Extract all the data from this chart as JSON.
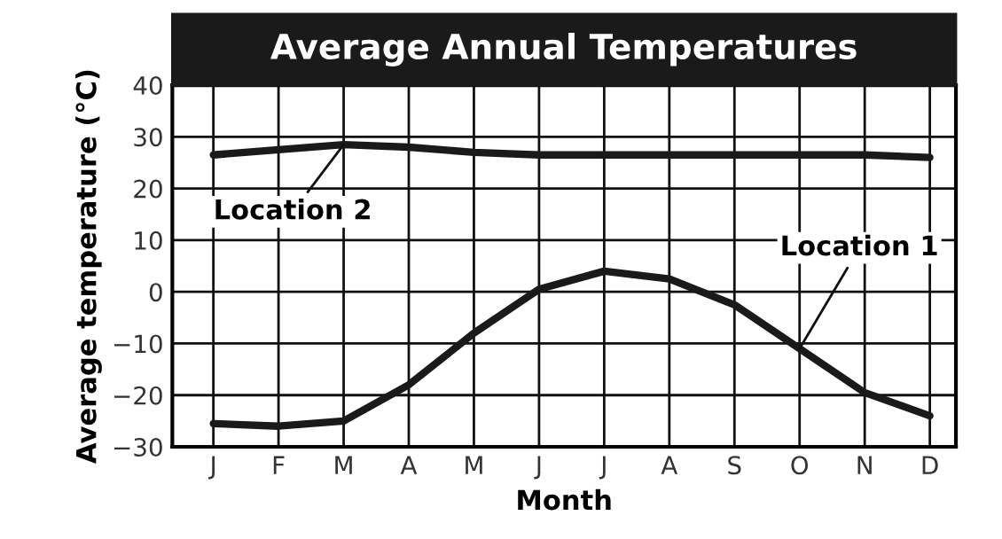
{
  "chart_data": {
    "type": "line",
    "title": "Average Annual Temperatures",
    "xlabel": "Month",
    "ylabel": "Average temperature (°C)",
    "categories": [
      "J",
      "F",
      "M",
      "A",
      "M",
      "J",
      "J",
      "A",
      "S",
      "O",
      "N",
      "D"
    ],
    "series": [
      {
        "color": "#1a1a1a",
        "values": [
          -25.5,
          -26,
          -25,
          -18,
          -8,
          0.5,
          4,
          2.5,
          -2.5,
          -11,
          -19.5,
          -24
        ]
      },
      {
        "color": "#1a1a1a",
        "values": [
          26.5,
          27.5,
          28.5,
          28,
          27,
          26.5,
          26.5,
          26.5,
          26.5,
          26.5,
          26.5,
          26
        ]
      }
    ],
    "annotations": [
      {
        "text": "Location 1",
        "x": "O",
        "y": -11
      },
      {
        "text": "Location 2",
        "x": "M",
        "y": 28.5
      }
    ],
    "ylim": [
      -30,
      40
    ],
    "yticks": [
      -30,
      -20,
      -10,
      0,
      10,
      20,
      30,
      40
    ],
    "grid": true,
    "legend": false,
    "marker": "none",
    "line_style": "solid"
  }
}
